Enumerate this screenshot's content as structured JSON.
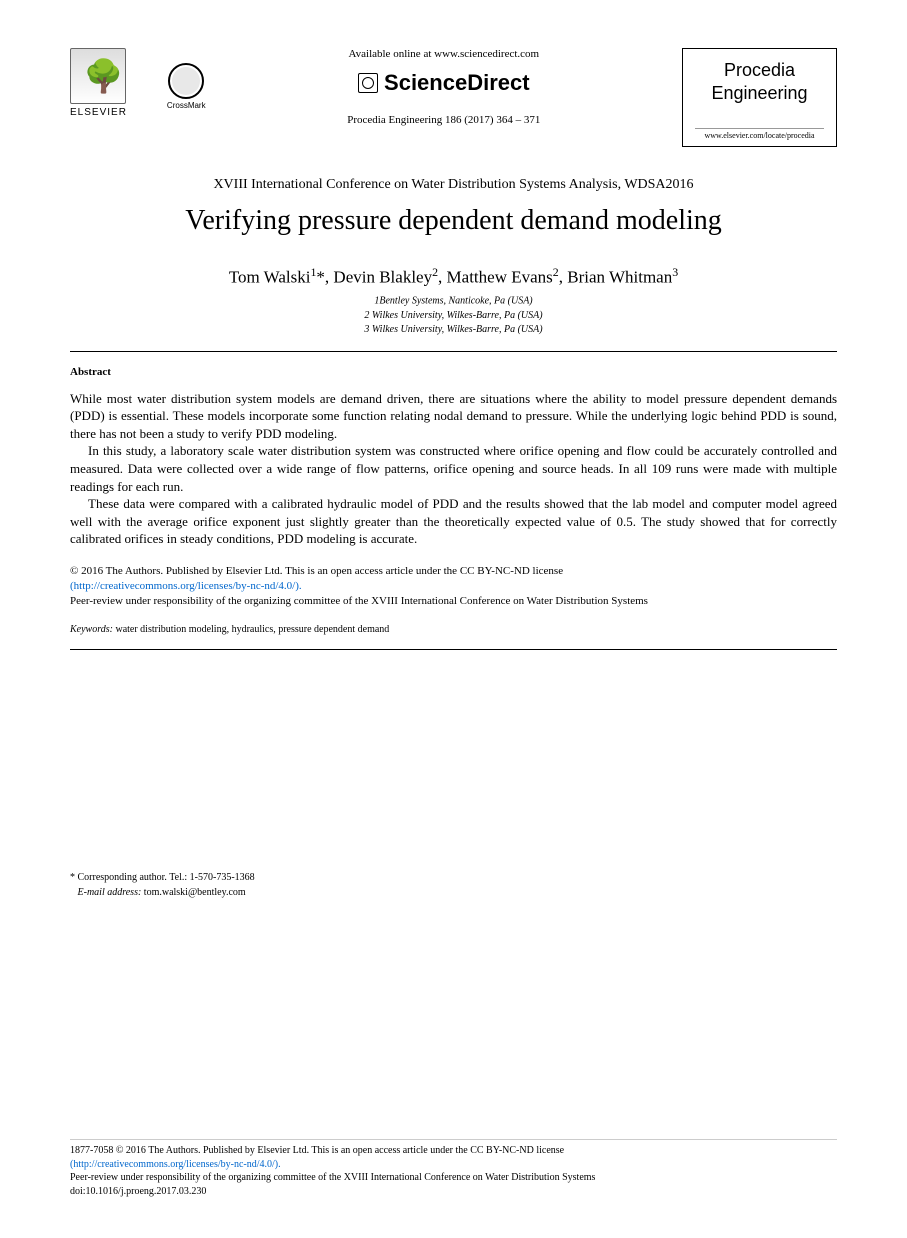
{
  "header": {
    "publisher_name": "ELSEVIER",
    "crossmark_label": "CrossMark",
    "available_text": "Available online at www.sciencedirect.com",
    "platform_name": "ScienceDirect",
    "citation": "Procedia Engineering 186 (2017) 364 – 371",
    "journal_name_line1": "Procedia",
    "journal_name_line2": "Engineering",
    "journal_url": "www.elsevier.com/locate/procedia"
  },
  "conference": "XVIII International Conference on Water Distribution Systems Analysis, WDSA2016",
  "title": "Verifying pressure dependent demand modeling",
  "authors_html": "Tom Walski<sup>1</sup>*, Devin Blakley<sup>2</sup>, Matthew Evans<sup>2</sup>, Brian Whitman<sup>3</sup>",
  "affiliations": {
    "a1": "1Bentley Systems, Nanticoke, Pa (USA)",
    "a2": "2 Wilkes University, Wilkes-Barre, Pa (USA)",
    "a3": "3 Wilkes University, Wilkes-Barre, Pa (USA)"
  },
  "abstract": {
    "heading": "Abstract",
    "p1": "While most water distribution system models are demand driven, there are situations where the ability to model pressure dependent demands (PDD) is essential. These models incorporate some function relating nodal demand to pressure. While the underlying logic behind PDD is sound, there has not been a study to verify PDD modeling.",
    "p2": "In this study, a laboratory scale water distribution system was constructed where orifice opening and flow could be accurately controlled and measured. Data were collected over a wide range of flow patterns, orifice opening and source heads. In all 109 runs were made with multiple readings for each run.",
    "p3": "These data were compared with a calibrated hydraulic model of PDD and the results showed that the lab model and computer model agreed well with the average orifice exponent just slightly greater than the theoretically expected value of 0.5. The study showed that for correctly calibrated orifices in steady conditions, PDD modeling is accurate."
  },
  "copyright": {
    "line1": "© 2016 The Authors. Published by Elsevier Ltd. This is an open access article under the CC BY-NC-ND license",
    "license_url": "(http://creativecommons.org/licenses/by-nc-nd/4.0/).",
    "line2": "Peer-review under responsibility of the organizing committee of the XVIII International Conference on Water Distribution Systems"
  },
  "keywords": {
    "label": "Keywords:",
    "text": "  water distribution modeling, hydraulics, pressure dependent demand"
  },
  "corresponding": {
    "line1": "* Corresponding author. Tel.: 1-570-735-1368",
    "email_label": "E-mail address:",
    "email": " tom.walski@bentley.com"
  },
  "footer": {
    "line1": "1877-7058 © 2016 The Authors. Published by Elsevier Ltd. This is an open access article under the CC BY-NC-ND license",
    "license_url": "(http://creativecommons.org/licenses/by-nc-nd/4.0/).",
    "line2": "Peer-review under responsibility of the organizing committee of the XVIII International Conference on Water Distribution Systems",
    "doi": "doi:10.1016/j.proeng.2017.03.230"
  }
}
